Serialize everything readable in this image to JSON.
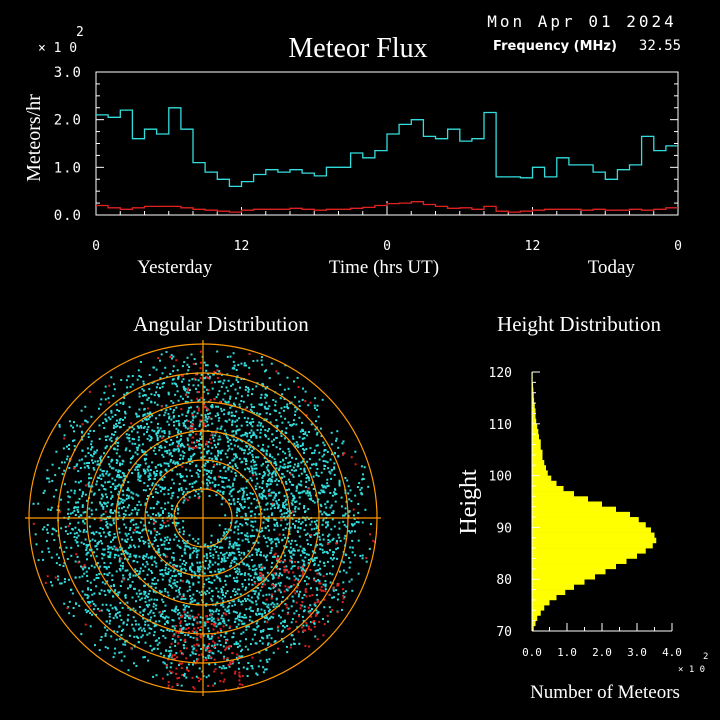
{
  "header": {
    "date": "Mon Apr 01 2024",
    "title": "Meteor Flux",
    "freq_label": "Frequency (MHz)",
    "freq_value": "32.55"
  },
  "colors": {
    "flux_line": "#33dddd",
    "baseline_line": "#dd2222",
    "axes": "#ffffff",
    "rings": "#ff9900",
    "dots_primary": "#33dddd",
    "dots_secondary": "#dd2222",
    "histogram": "#ffff00"
  },
  "chart_data": [
    {
      "type": "line",
      "title": "Meteor Flux",
      "ylabel": "Meteors/hr",
      "scale_note": {
        "base": "× 1 0",
        "exp": "2"
      },
      "xlabel": "Time (hrs UT)",
      "xlim": [
        0,
        48
      ],
      "ylim": [
        0,
        3.0
      ],
      "yticks": [
        "0.0",
        "1.0",
        "2.0",
        "3.0"
      ],
      "xticks": [
        {
          "x": 0,
          "label": "0"
        },
        {
          "x": 12,
          "label": "12"
        },
        {
          "x": 24,
          "label": "0"
        },
        {
          "x": 36,
          "label": "12"
        },
        {
          "x": 48,
          "label": "0"
        }
      ],
      "day_labels": [
        {
          "x": 6.5,
          "label": "Yesterday"
        },
        {
          "x": 42.5,
          "label": "Today"
        }
      ],
      "grid": false,
      "series": [
        {
          "step": true,
          "color": "#33dddd",
          "x": [
            0,
            1,
            2,
            3,
            4,
            5,
            6,
            7,
            8,
            9,
            10,
            11,
            12,
            13,
            14,
            15,
            16,
            17,
            18,
            19,
            20,
            21,
            22,
            23,
            24,
            25,
            26,
            27,
            28,
            29,
            30,
            31,
            32,
            33,
            34,
            35,
            36,
            37,
            38,
            39,
            40,
            41,
            42,
            43,
            44,
            45,
            46,
            47
          ],
          "values": [
            2.1,
            2.05,
            2.2,
            1.6,
            1.8,
            1.7,
            2.25,
            1.8,
            1.1,
            0.9,
            0.75,
            0.6,
            0.7,
            0.85,
            0.95,
            0.9,
            0.95,
            0.88,
            0.82,
            1.0,
            1.0,
            1.3,
            1.2,
            1.35,
            1.7,
            1.9,
            2.0,
            1.65,
            1.6,
            1.8,
            1.55,
            1.6,
            2.15,
            0.8,
            0.8,
            0.78,
            1.0,
            0.8,
            1.2,
            1.05,
            1.05,
            0.9,
            0.75,
            0.95,
            1.05,
            1.65,
            1.35,
            1.45
          ]
        },
        {
          "step": true,
          "color": "#dd2222",
          "x": [
            0,
            1,
            2,
            3,
            4,
            5,
            6,
            7,
            8,
            9,
            10,
            11,
            12,
            13,
            14,
            15,
            16,
            17,
            18,
            19,
            20,
            21,
            22,
            23,
            24,
            25,
            26,
            27,
            28,
            29,
            30,
            31,
            32,
            33,
            34,
            35,
            36,
            37,
            38,
            39,
            40,
            41,
            42,
            43,
            44,
            45,
            46,
            47
          ],
          "values": [
            0.2,
            0.15,
            0.12,
            0.15,
            0.18,
            0.18,
            0.18,
            0.15,
            0.12,
            0.1,
            0.08,
            0.06,
            0.1,
            0.12,
            0.12,
            0.12,
            0.14,
            0.12,
            0.1,
            0.12,
            0.12,
            0.14,
            0.16,
            0.2,
            0.24,
            0.25,
            0.28,
            0.22,
            0.18,
            0.14,
            0.15,
            0.12,
            0.18,
            0.08,
            0.06,
            0.08,
            0.1,
            0.12,
            0.12,
            0.12,
            0.1,
            0.12,
            0.1,
            0.1,
            0.12,
            0.1,
            0.12,
            0.15
          ]
        }
      ]
    },
    {
      "type": "scatter",
      "title": "Angular Distribution",
      "grid": true,
      "rings": 6,
      "series": [
        {
          "color": "#33dddd",
          "count": 4200
        },
        {
          "color": "#dd2222",
          "count": 420
        }
      ]
    },
    {
      "type": "bar",
      "title": "Height Distribution",
      "ylabel": "Height",
      "xlabel": "Number of Meteors",
      "scale_note": {
        "base": "× 1 0",
        "exp": "2"
      },
      "xlim": [
        0,
        4.0
      ],
      "ylim": [
        70,
        120
      ],
      "xticks": [
        "0.0",
        "1.0",
        "2.0",
        "3.0",
        "4.0"
      ],
      "yticks": [
        "70",
        "80",
        "90",
        "100",
        "110",
        "120"
      ],
      "categories": [
        70,
        71,
        72,
        73,
        74,
        75,
        76,
        77,
        78,
        79,
        80,
        81,
        82,
        83,
        84,
        85,
        86,
        87,
        88,
        89,
        90,
        91,
        92,
        93,
        94,
        95,
        96,
        97,
        98,
        99,
        100,
        101,
        102,
        103,
        104,
        105,
        106,
        107,
        108,
        109,
        110,
        111,
        112,
        113,
        114,
        115,
        116,
        117,
        118,
        119
      ],
      "values": [
        0.05,
        0.1,
        0.15,
        0.25,
        0.35,
        0.5,
        0.7,
        0.95,
        1.2,
        1.5,
        1.8,
        2.1,
        2.4,
        2.7,
        3.0,
        3.25,
        3.45,
        3.55,
        3.5,
        3.4,
        3.25,
        3.05,
        2.8,
        2.4,
        2.0,
        1.6,
        1.2,
        0.9,
        0.7,
        0.55,
        0.45,
        0.4,
        0.35,
        0.3,
        0.3,
        0.25,
        0.25,
        0.2,
        0.18,
        0.15,
        0.12,
        0.1,
        0.1,
        0.08,
        0.06,
        0.05,
        0.04,
        0.03,
        0.02,
        0.02
      ]
    }
  ]
}
